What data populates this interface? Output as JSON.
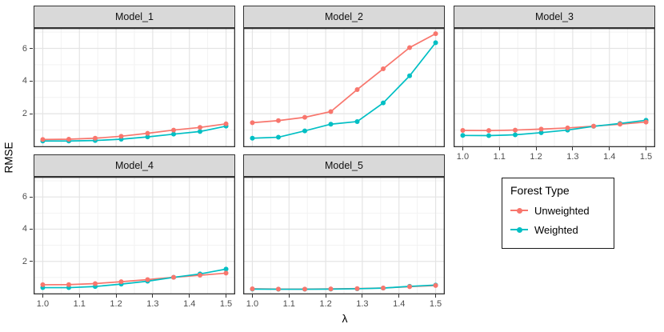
{
  "figure": {
    "ylabel": "RMSE",
    "xlabel": "λ"
  },
  "legend": {
    "title": "Forest Type",
    "entries": [
      {
        "label": "Unweighted",
        "color": "#F8766D"
      },
      {
        "label": "Weighted",
        "color": "#00BFC4"
      }
    ]
  },
  "chart_data": {
    "type": "line",
    "title": "",
    "xlabel": "λ",
    "ylabel": "RMSE",
    "x": [
      1.0,
      1.071,
      1.143,
      1.214,
      1.286,
      1.357,
      1.429,
      1.5
    ],
    "x_ticks": [
      "1.0",
      "1.1",
      "1.2",
      "1.3",
      "1.4",
      "1.5"
    ],
    "x_tick_values": [
      1.0,
      1.1,
      1.2,
      1.3,
      1.4,
      1.5
    ],
    "y_ticks": [
      "2",
      "4",
      "6"
    ],
    "y_tick_values": [
      2,
      4,
      6
    ],
    "x_minor": [
      1.05,
      1.15,
      1.25,
      1.35,
      1.45
    ],
    "y_minor": [
      1,
      3,
      5,
      7
    ],
    "xlim": [
      0.975,
      1.525
    ],
    "ylim": [
      -0.05,
      7.25
    ],
    "grid": true,
    "legend_position": "bottom-right-outside",
    "series_colors": {
      "Unweighted": "#F8766D",
      "Weighted": "#00BFC4"
    },
    "facets": [
      {
        "name": "Model_1",
        "series": [
          {
            "name": "Unweighted",
            "values": [
              0.42,
              0.44,
              0.5,
              0.62,
              0.8,
              1.0,
              1.16,
              1.38
            ]
          },
          {
            "name": "Weighted",
            "values": [
              0.33,
              0.33,
              0.36,
              0.44,
              0.58,
              0.75,
              0.91,
              1.24
            ]
          }
        ]
      },
      {
        "name": "Model_2",
        "series": [
          {
            "name": "Unweighted",
            "values": [
              1.45,
              1.58,
              1.78,
              2.13,
              3.48,
              4.75,
              6.05,
              6.9
            ]
          },
          {
            "name": "Weighted",
            "values": [
              0.5,
              0.56,
              0.95,
              1.36,
              1.52,
              2.66,
              4.32,
              6.35
            ]
          }
        ]
      },
      {
        "name": "Model_3",
        "series": [
          {
            "name": "Unweighted",
            "values": [
              0.98,
              0.97,
              1.0,
              1.06,
              1.13,
              1.24,
              1.36,
              1.49
            ]
          },
          {
            "name": "Weighted",
            "values": [
              0.67,
              0.66,
              0.71,
              0.84,
              1.0,
              1.23,
              1.4,
              1.6
            ]
          }
        ]
      },
      {
        "name": "Model_4",
        "series": [
          {
            "name": "Unweighted",
            "values": [
              0.55,
              0.56,
              0.62,
              0.74,
              0.87,
              1.01,
              1.14,
              1.27
            ]
          },
          {
            "name": "Weighted",
            "values": [
              0.37,
              0.37,
              0.44,
              0.59,
              0.77,
              1.01,
              1.22,
              1.52
            ]
          }
        ]
      },
      {
        "name": "Model_5",
        "series": [
          {
            "name": "Unweighted",
            "values": [
              0.3,
              0.28,
              0.28,
              0.29,
              0.31,
              0.35,
              0.43,
              0.5
            ]
          },
          {
            "name": "Weighted",
            "values": [
              0.28,
              0.27,
              0.27,
              0.28,
              0.3,
              0.34,
              0.45,
              0.53
            ]
          }
        ]
      }
    ]
  }
}
